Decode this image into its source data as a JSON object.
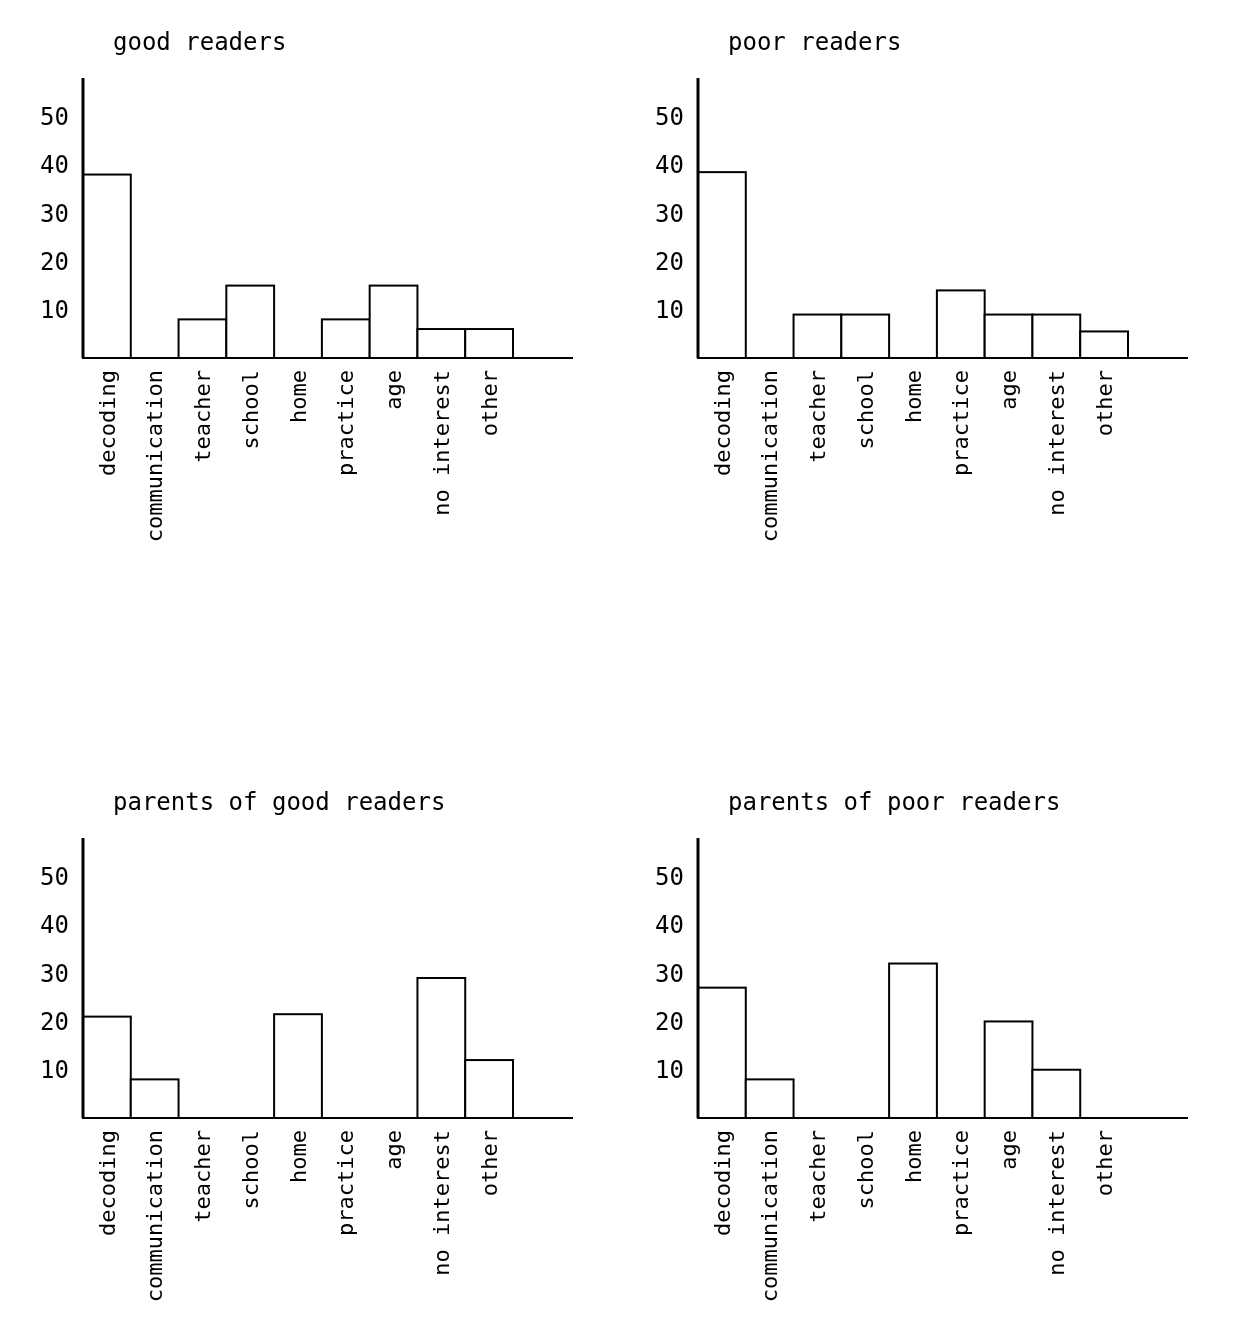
{
  "chart_data": [
    {
      "type": "bar",
      "title": "good readers",
      "categories": [
        "decoding",
        "communication",
        "teacher",
        "school",
        "home",
        "practice",
        "age",
        "no interest",
        "other"
      ],
      "values": [
        38,
        0,
        8,
        15,
        0,
        8,
        15,
        6,
        6
      ],
      "color": "#ffffff",
      "ylim": [
        0,
        58
      ],
      "yticks": [
        10,
        20,
        30,
        40,
        50
      ]
    },
    {
      "type": "bar",
      "title": "poor readers",
      "categories": [
        "decoding",
        "communication",
        "teacher",
        "school",
        "home",
        "practice",
        "age",
        "no interest",
        "other"
      ],
      "values": [
        38.5,
        0,
        9,
        9,
        0,
        14,
        9,
        9,
        5.5
      ],
      "color": "#ffffff",
      "ylim": [
        0,
        58
      ],
      "yticks": [
        10,
        20,
        30,
        40,
        50
      ]
    },
    {
      "type": "bar",
      "title": "parents of good readers",
      "categories": [
        "decoding",
        "communication",
        "teacher",
        "school",
        "home",
        "practice",
        "age",
        "no interest",
        "other"
      ],
      "values": [
        21,
        8,
        0,
        0,
        21.5,
        0,
        0,
        29,
        12
      ],
      "color": "#ffffff",
      "ylim": [
        0,
        58
      ],
      "yticks": [
        10,
        20,
        30,
        40,
        50
      ]
    },
    {
      "type": "bar",
      "title": "parents of poor readers",
      "categories": [
        "decoding",
        "communication",
        "teacher",
        "school",
        "home",
        "practice",
        "age",
        "no interest",
        "other"
      ],
      "values": [
        27,
        8,
        0,
        0,
        32,
        0,
        20,
        10,
        0
      ],
      "color": "#ffffff",
      "ylim": [
        0,
        58
      ],
      "yticks": [
        10,
        20,
        30,
        40,
        50
      ]
    }
  ]
}
